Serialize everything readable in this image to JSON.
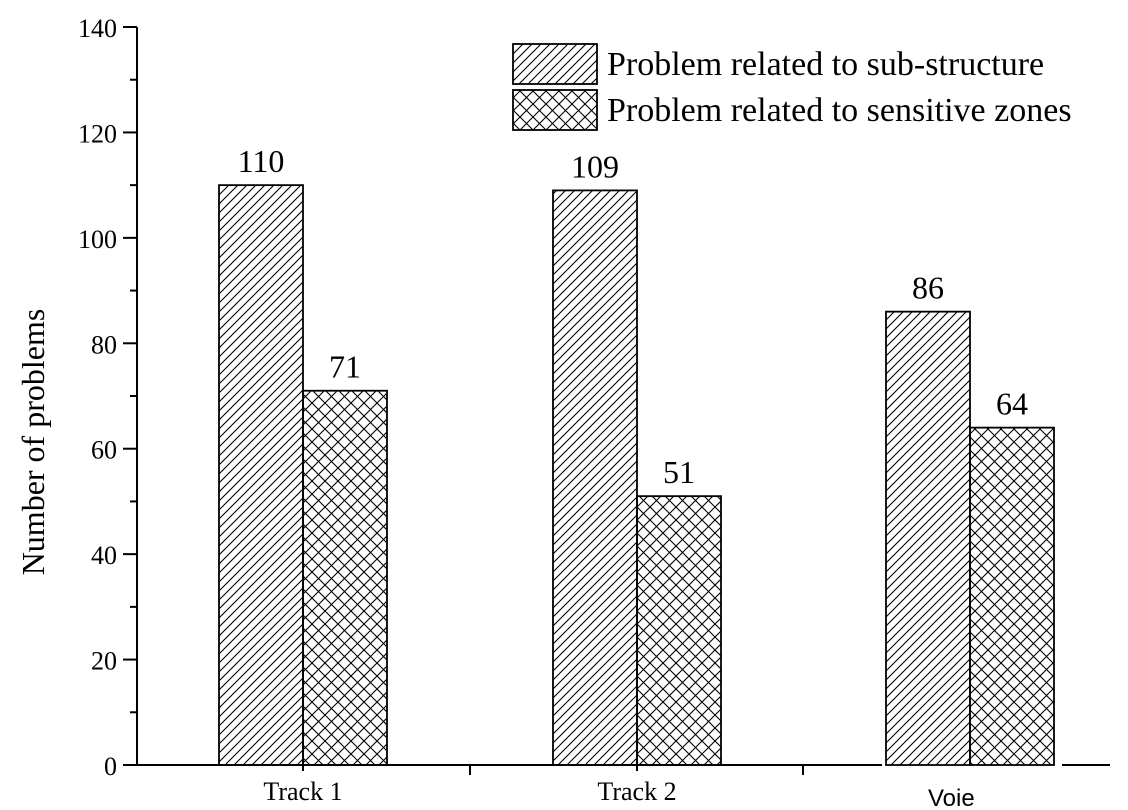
{
  "chart_data": {
    "type": "bar",
    "categories": [
      "Track 1",
      "Track 2",
      "Voie"
    ],
    "series": [
      {
        "name": "Problem related to sub-structure",
        "values": [
          110,
          109,
          86
        ],
        "pattern": "diagonal-hatch"
      },
      {
        "name": "Problem related to sensitive zones",
        "values": [
          71,
          51,
          64
        ],
        "pattern": "cross-hatch"
      }
    ],
    "data_labels": [
      [
        "110",
        "109",
        "86"
      ],
      [
        "71",
        "51",
        "64"
      ]
    ],
    "title": "",
    "xlabel": "",
    "ylabel": "Number of problems",
    "ylim": [
      0,
      140
    ],
    "yticks": [
      0,
      20,
      40,
      60,
      80,
      100,
      120,
      140
    ],
    "grid": false,
    "legend": "top-right",
    "colors": {
      "bar_fill": "#ffffff",
      "stroke": "#000000"
    }
  }
}
